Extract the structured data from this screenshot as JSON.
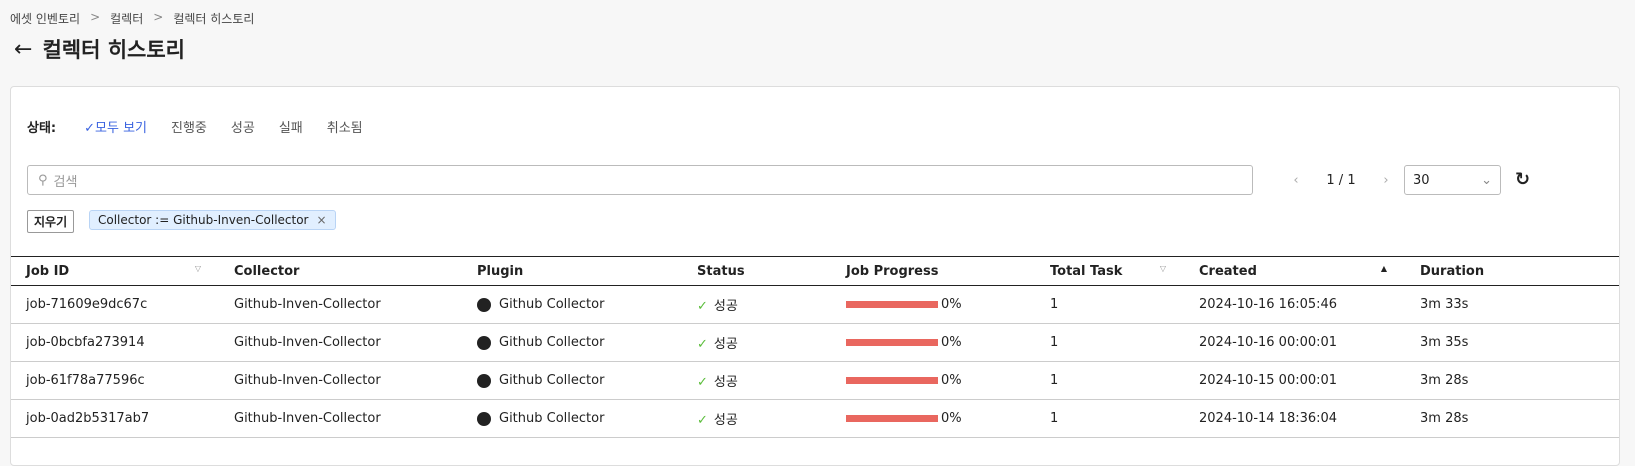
{
  "breadcrumb": [
    "에셋 인벤토리",
    "컬렉터",
    "컬렉터 히스토리"
  ],
  "title": "컬렉터 히스토리",
  "status_filter": {
    "label": "상태:",
    "options": [
      "모두 보기",
      "진행중",
      "성공",
      "실패",
      "취소됨"
    ],
    "selected": "모두 보기"
  },
  "search": {
    "placeholder": "검색"
  },
  "pagination": {
    "text": "1 / 1",
    "page_size": "30"
  },
  "filters": {
    "clear_label": "지우기",
    "tags": [
      "Collector := Github-Inven-Collector"
    ]
  },
  "table": {
    "columns": [
      "Job ID",
      "Collector",
      "Plugin",
      "Status",
      "Job Progress",
      "Total Task",
      "Created",
      "Duration"
    ],
    "sort": {
      "column": "Created",
      "direction": "asc"
    },
    "rows": [
      {
        "job_id": "job-71609e9dc67c",
        "collector": "Github-Inven-Collector",
        "plugin": "Github Collector",
        "status": "성공",
        "progress": "0%",
        "total_task": "1",
        "created": "2024-10-16 16:05:46",
        "duration": "3m 33s"
      },
      {
        "job_id": "job-0bcbfa273914",
        "collector": "Github-Inven-Collector",
        "plugin": "Github Collector",
        "status": "성공",
        "progress": "0%",
        "total_task": "1",
        "created": "2024-10-16 00:00:01",
        "duration": "3m 35s"
      },
      {
        "job_id": "job-61f78a77596c",
        "collector": "Github-Inven-Collector",
        "plugin": "Github Collector",
        "status": "성공",
        "progress": "0%",
        "total_task": "1",
        "created": "2024-10-15 00:00:01",
        "duration": "3m 28s"
      },
      {
        "job_id": "job-0ad2b5317ab7",
        "collector": "Github-Inven-Collector",
        "plugin": "Github Collector",
        "status": "성공",
        "progress": "0%",
        "total_task": "1",
        "created": "2024-10-14 18:36:04",
        "duration": "3m 28s"
      }
    ]
  },
  "colors": {
    "accent": "#3a63e0",
    "success": "#5bbd3b",
    "progress_bar": "#e9675f"
  }
}
